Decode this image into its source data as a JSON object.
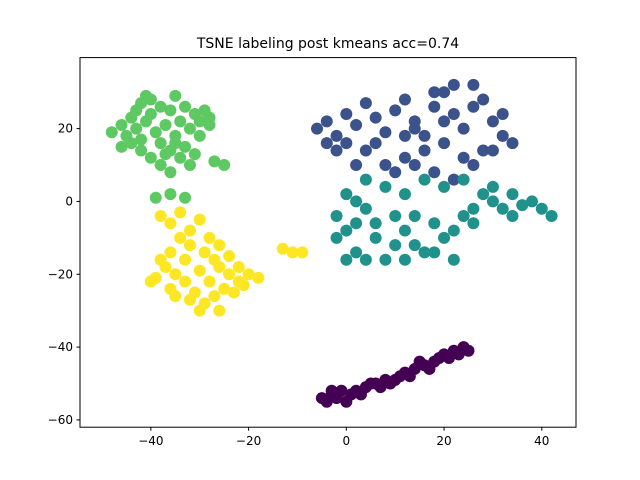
{
  "chart_data": {
    "type": "scatter",
    "title": "TSNE labeling post kmeans acc=0.74",
    "xlabel": "",
    "ylabel": "",
    "xlim": [
      -54.5,
      47
    ],
    "ylim": [
      -62,
      39.5
    ],
    "xticks": [
      -40,
      -20,
      0,
      20,
      40
    ],
    "yticks": [
      -60,
      -40,
      -20,
      0,
      20
    ],
    "grid": false,
    "legend": "none",
    "series": [
      {
        "color": "#5ec962",
        "points": [
          [
            -48,
            19
          ],
          [
            -46,
            21
          ],
          [
            -45,
            18
          ],
          [
            -44,
            23
          ],
          [
            -43,
            20
          ],
          [
            -42,
            17
          ],
          [
            -41,
            22
          ],
          [
            -40,
            24
          ],
          [
            -39,
            19
          ],
          [
            -38,
            16
          ],
          [
            -37,
            21
          ],
          [
            -36,
            25
          ],
          [
            -35,
            18
          ],
          [
            -34,
            22
          ],
          [
            -33,
            26
          ],
          [
            -32,
            20
          ],
          [
            -31,
            24
          ],
          [
            -30,
            18
          ],
          [
            -29,
            25
          ],
          [
            -28,
            21
          ],
          [
            -42,
            27
          ],
          [
            -40,
            28
          ],
          [
            -38,
            26
          ],
          [
            -36,
            14
          ],
          [
            -34,
            12
          ],
          [
            -32,
            10
          ],
          [
            -40,
            12
          ],
          [
            -42,
            14
          ],
          [
            -44,
            16
          ],
          [
            -38,
            10
          ],
          [
            -36,
            8
          ],
          [
            -31,
            13
          ],
          [
            -27,
            11
          ],
          [
            -25,
            10
          ],
          [
            -35,
            29
          ],
          [
            -41,
            29
          ],
          [
            -43,
            25
          ],
          [
            -46,
            15
          ],
          [
            -39,
            1
          ],
          [
            -36,
            2
          ],
          [
            -33,
            1
          ],
          [
            -30,
            22
          ],
          [
            -28,
            23
          ],
          [
            -33,
            15
          ],
          [
            -35,
            16
          ],
          [
            -37,
            13
          ]
        ]
      },
      {
        "color": "#fde725",
        "points": [
          [
            -38,
            -4
          ],
          [
            -36,
            -6
          ],
          [
            -34,
            -3
          ],
          [
            -32,
            -8
          ],
          [
            -30,
            -5
          ],
          [
            -28,
            -10
          ],
          [
            -26,
            -12
          ],
          [
            -24,
            -15
          ],
          [
            -22,
            -18
          ],
          [
            -20,
            -20
          ],
          [
            -18,
            -21
          ],
          [
            -22,
            -22
          ],
          [
            -25,
            -24
          ],
          [
            -27,
            -26
          ],
          [
            -29,
            -28
          ],
          [
            -31,
            -25
          ],
          [
            -33,
            -22
          ],
          [
            -35,
            -20
          ],
          [
            -37,
            -18
          ],
          [
            -39,
            -21
          ],
          [
            -36,
            -14
          ],
          [
            -33,
            -16
          ],
          [
            -30,
            -19
          ],
          [
            -28,
            -22
          ],
          [
            -26,
            -18
          ],
          [
            -24,
            -20
          ],
          [
            -32,
            -12
          ],
          [
            -34,
            -10
          ],
          [
            -36,
            -24
          ],
          [
            -30,
            -30
          ],
          [
            -26,
            -30
          ],
          [
            -32,
            -27
          ],
          [
            -38,
            -16
          ],
          [
            -29,
            -14
          ],
          [
            -27,
            -16
          ],
          [
            -23,
            -25
          ],
          [
            -21,
            -23
          ],
          [
            -13,
            -13
          ],
          [
            -11,
            -14
          ],
          [
            -9,
            -14
          ],
          [
            -40,
            -22
          ],
          [
            -35,
            -26
          ]
        ]
      },
      {
        "color": "#3b528b",
        "points": [
          [
            -6,
            20
          ],
          [
            -4,
            22
          ],
          [
            -2,
            18
          ],
          [
            0,
            24
          ],
          [
            2,
            21
          ],
          [
            4,
            27
          ],
          [
            6,
            23
          ],
          [
            8,
            19
          ],
          [
            10,
            25
          ],
          [
            12,
            28
          ],
          [
            14,
            22
          ],
          [
            16,
            18
          ],
          [
            18,
            26
          ],
          [
            20,
            30
          ],
          [
            22,
            24
          ],
          [
            24,
            20
          ],
          [
            26,
            32
          ],
          [
            28,
            28
          ],
          [
            30,
            22
          ],
          [
            32,
            18
          ],
          [
            34,
            16
          ],
          [
            28,
            14
          ],
          [
            24,
            12
          ],
          [
            20,
            16
          ],
          [
            16,
            14
          ],
          [
            12,
            12
          ],
          [
            8,
            10
          ],
          [
            4,
            14
          ],
          [
            0,
            16
          ],
          [
            -4,
            16
          ],
          [
            2,
            10
          ],
          [
            10,
            8
          ],
          [
            14,
            10
          ],
          [
            18,
            8
          ],
          [
            22,
            6
          ],
          [
            26,
            10
          ],
          [
            30,
            14
          ],
          [
            32,
            24
          ],
          [
            22,
            32
          ],
          [
            18,
            30
          ],
          [
            14,
            20
          ],
          [
            6,
            16
          ],
          [
            -2,
            14
          ],
          [
            26,
            26
          ],
          [
            20,
            22
          ],
          [
            12,
            18
          ]
        ]
      },
      {
        "color": "#21918c",
        "points": [
          [
            -2,
            -4
          ],
          [
            0,
            -8
          ],
          [
            2,
            -14
          ],
          [
            4,
            -2
          ],
          [
            6,
            -10
          ],
          [
            8,
            -16
          ],
          [
            10,
            -4
          ],
          [
            12,
            -8
          ],
          [
            14,
            -12
          ],
          [
            16,
            -14
          ],
          [
            18,
            -6
          ],
          [
            20,
            -10
          ],
          [
            22,
            -16
          ],
          [
            24,
            -4
          ],
          [
            26,
            -2
          ],
          [
            28,
            2
          ],
          [
            30,
            4
          ],
          [
            32,
            -2
          ],
          [
            34,
            -4
          ],
          [
            36,
            -1
          ],
          [
            38,
            0
          ],
          [
            40,
            -2
          ],
          [
            42,
            -4
          ],
          [
            20,
            4
          ],
          [
            16,
            6
          ],
          [
            12,
            2
          ],
          [
            8,
            4
          ],
          [
            4,
            6
          ],
          [
            0,
            2
          ],
          [
            2,
            -6
          ],
          [
            6,
            -6
          ],
          [
            10,
            -12
          ],
          [
            14,
            -4
          ],
          [
            18,
            -14
          ],
          [
            22,
            -8
          ],
          [
            26,
            -6
          ],
          [
            24,
            6
          ],
          [
            30,
            0
          ],
          [
            34,
            2
          ],
          [
            0,
            -16
          ],
          [
            4,
            -16
          ],
          [
            12,
            -16
          ],
          [
            -2,
            -10
          ],
          [
            2,
            0
          ]
        ]
      },
      {
        "color": "#440154",
        "points": [
          [
            -5,
            -54
          ],
          [
            -3,
            -53
          ],
          [
            -1,
            -52
          ],
          [
            0,
            -55
          ],
          [
            2,
            -52
          ],
          [
            4,
            -51
          ],
          [
            6,
            -50
          ],
          [
            8,
            -49
          ],
          [
            10,
            -49
          ],
          [
            12,
            -47
          ],
          [
            14,
            -46
          ],
          [
            16,
            -45
          ],
          [
            18,
            -44
          ],
          [
            20,
            -42
          ],
          [
            22,
            -41
          ],
          [
            24,
            -40
          ],
          [
            -4,
            -55
          ],
          [
            -2,
            -54
          ],
          [
            3,
            -53
          ],
          [
            7,
            -51
          ],
          [
            11,
            -48
          ],
          [
            13,
            -48
          ],
          [
            17,
            -46
          ],
          [
            19,
            -43
          ],
          [
            21,
            -43
          ],
          [
            23,
            -42
          ],
          [
            5,
            -50
          ],
          [
            9,
            -50
          ],
          [
            15,
            -44
          ],
          [
            25,
            -41
          ],
          [
            -3,
            -52
          ],
          [
            1,
            -53
          ]
        ]
      }
    ]
  }
}
